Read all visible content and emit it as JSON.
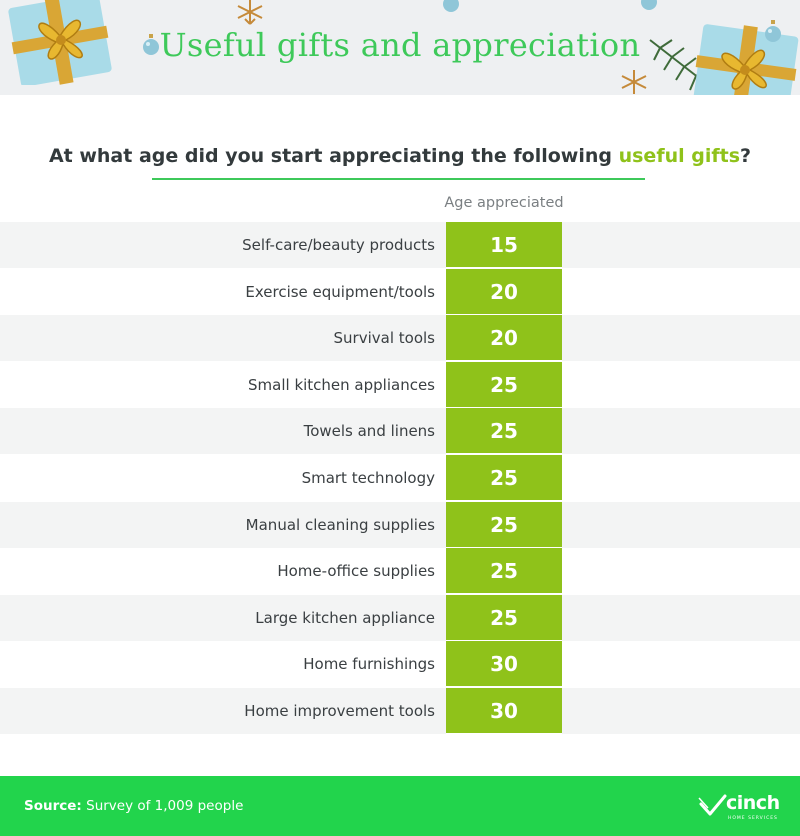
{
  "banner": {
    "title": "Useful gifts and appreciation"
  },
  "question": {
    "prefix": "At what age did you start appreciating the following ",
    "highlight": "useful gifts",
    "suffix": "?"
  },
  "colors": {
    "accent": "#8fc21a",
    "title_green": "#3ec95a",
    "footer_green": "#22d44c"
  },
  "icons": [
    "gift-box-icon",
    "ornament-icon",
    "snowflake-icon",
    "pine-branch-icon"
  ],
  "chart_data": {
    "type": "table",
    "column_header": "Age appreciated",
    "categories": [
      "Self-care/beauty products",
      "Exercise equipment/tools",
      "Survival tools",
      "Small kitchen appliances",
      "Towels and linens",
      "Smart technology",
      "Manual cleaning supplies",
      "Home-office supplies",
      "Large kitchen appliance",
      "Home furnishings",
      "Home improvement tools"
    ],
    "values": [
      15,
      20,
      20,
      25,
      25,
      25,
      25,
      25,
      25,
      30,
      30
    ]
  },
  "footer": {
    "source_label": "Source:",
    "source_text": " Survey of 1,009 people",
    "logo_text": "cinch",
    "logo_subtext": "HOME SERVICES"
  }
}
